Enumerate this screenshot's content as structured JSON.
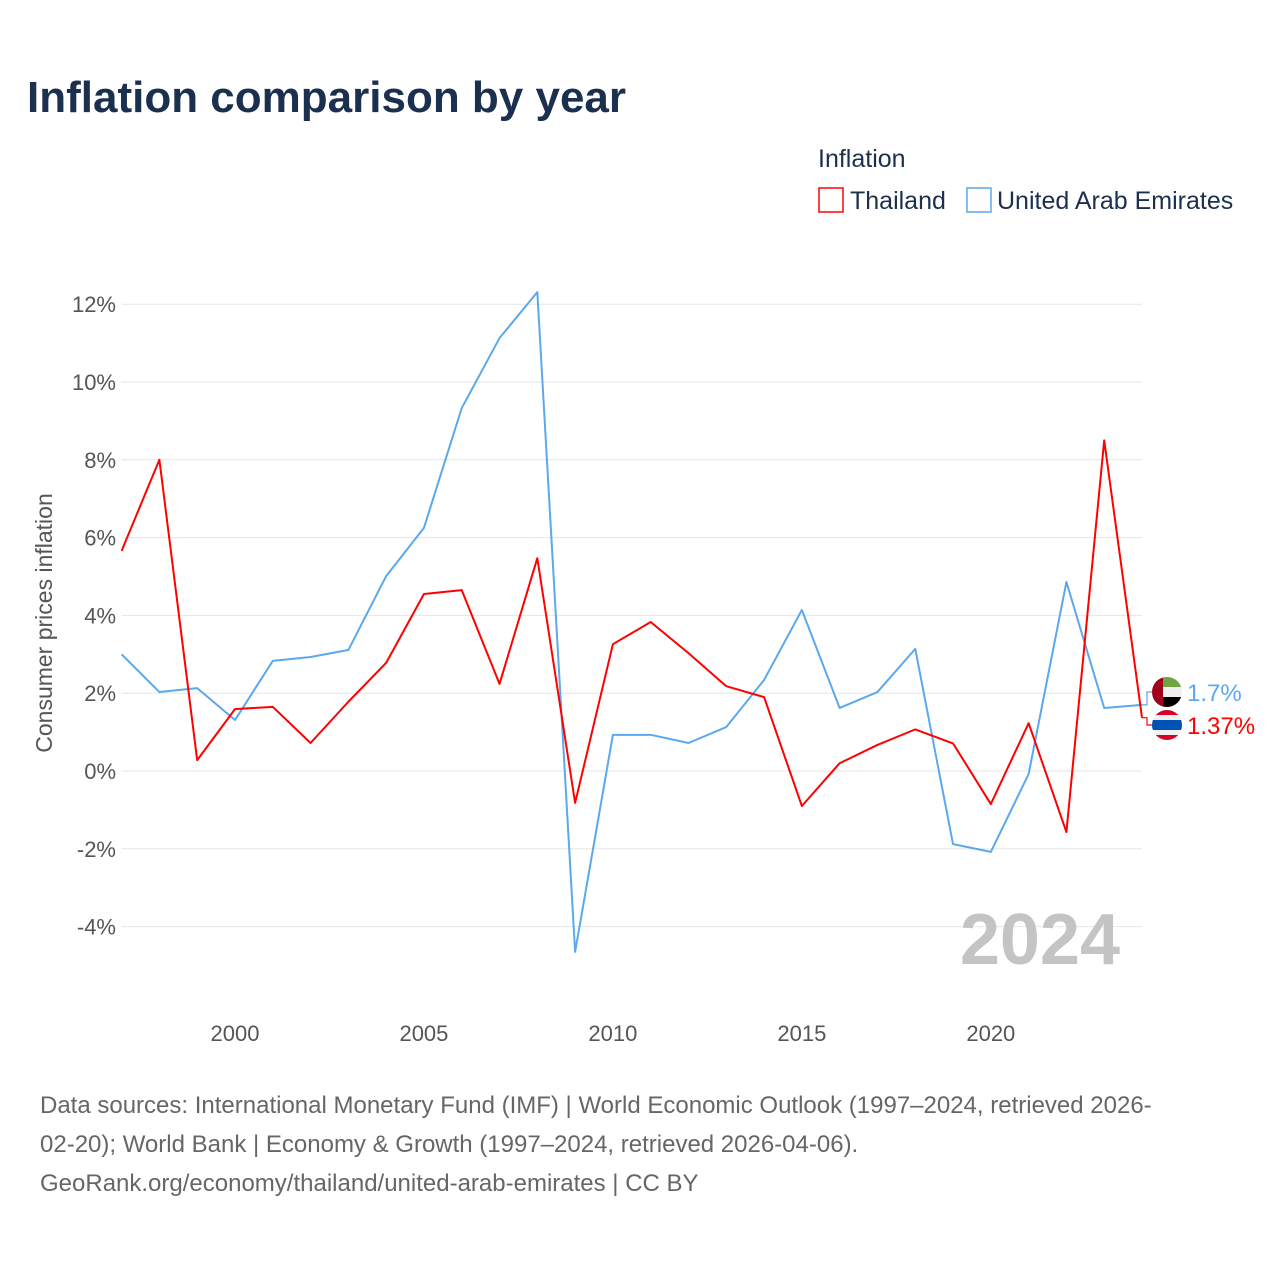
{
  "chart_data": {
    "type": "line",
    "title": "Inflation comparison by year",
    "legend_title": "Inflation",
    "legend_position": "top-right",
    "ylabel": "Consumer prices inflation",
    "xlabel": "",
    "x": [
      1997,
      1998,
      1999,
      2000,
      2001,
      2002,
      2003,
      2004,
      2005,
      2006,
      2007,
      2008,
      2009,
      2010,
      2011,
      2012,
      2013,
      2014,
      2015,
      2016,
      2017,
      2018,
      2019,
      2020,
      2021,
      2022,
      2023,
      2024
    ],
    "xlim": [
      1997,
      2024
    ],
    "ylim": [
      -6,
      13
    ],
    "yticks": [
      -4,
      -2,
      0,
      2,
      4,
      6,
      8,
      10,
      12
    ],
    "ytick_labels": [
      "-4%",
      "-2%",
      "0%",
      "2%",
      "4%",
      "6%",
      "8%",
      "10%",
      "12%"
    ],
    "xticks": [
      2000,
      2005,
      2010,
      2015,
      2020
    ],
    "xtick_labels": [
      "2000",
      "2005",
      "2010",
      "2015",
      "2020"
    ],
    "grid": true,
    "year_watermark": "2024",
    "series": [
      {
        "name": "Thailand",
        "color": "#ff0000",
        "end_label": "1.37%",
        "flag": "thailand-flag",
        "values": [
          5.66,
          8.0,
          0.28,
          1.59,
          1.65,
          0.72,
          1.78,
          2.78,
          4.55,
          4.65,
          2.24,
          5.47,
          -0.82,
          3.26,
          3.83,
          3.03,
          2.18,
          1.9,
          -0.9,
          0.2,
          0.67,
          1.07,
          0.71,
          -0.85,
          1.23,
          -1.57,
          8.5,
          1.37
        ]
      },
      {
        "name": "United Arab Emirates",
        "color": "#5ca8ec",
        "end_label": "1.7%",
        "flag": "uae-flag",
        "values": [
          3.0,
          2.03,
          2.13,
          1.31,
          2.83,
          2.93,
          3.11,
          5.01,
          6.25,
          9.33,
          11.13,
          12.31,
          -4.65,
          0.93,
          0.93,
          0.72,
          1.13,
          2.34,
          4.14,
          1.62,
          2.03,
          3.14,
          -1.88,
          -2.08,
          -0.08,
          4.86,
          1.62,
          1.7
        ]
      }
    ]
  },
  "footer": {
    "line1": "Data sources: International Monetary Fund (IMF) | World Economic Outlook (1997–2024, retrieved 2026-",
    "line2": "02-20); World Bank | Economy & Growth (1997–2024, retrieved 2026-04-06).",
    "line3": "GeoRank.org/economy/thailand/united-arab-emirates | CC BY"
  }
}
